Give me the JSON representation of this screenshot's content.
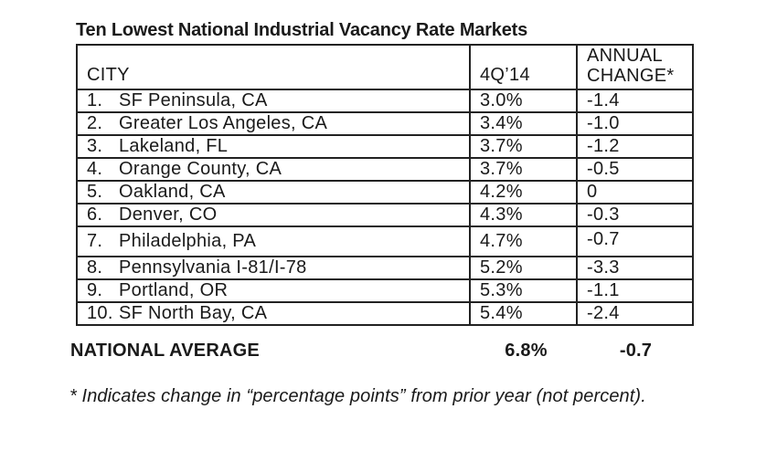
{
  "title": "Ten Lowest National Industrial Vacancy Rate Markets",
  "table": {
    "header": {
      "city": "CITY",
      "q4": "4Q’14",
      "change_line1": "ANNUAL",
      "change_line2": "CHANGE*"
    },
    "rows": [
      {
        "rank": "1.",
        "city": "SF Peninsula, CA",
        "q4": "3.0%",
        "change": "-1.4"
      },
      {
        "rank": "2.",
        "city": "Greater Los Angeles, CA",
        "q4": "3.4%",
        "change": "-1.0"
      },
      {
        "rank": "3.",
        "city": "Lakeland, FL",
        "q4": "3.7%",
        "change": "-1.2"
      },
      {
        "rank": "4.",
        "city": "Orange County, CA",
        "q4": "3.7%",
        "change": "-0.5"
      },
      {
        "rank": "5.",
        "city": "Oakland, CA",
        "q4": "4.2%",
        "change": "0"
      },
      {
        "rank": "6.",
        "city": "Denver, CO",
        "q4": "4.3%",
        "change": "-0.3"
      },
      {
        "rank": "7.",
        "city": "Philadelphia, PA",
        "q4": "4.7%",
        "change": "-0.7",
        "tall": true
      },
      {
        "rank": "8.",
        "city": "Pennsylvania I-81/I-78",
        "q4": "5.2%",
        "change": "-3.3"
      },
      {
        "rank": "9.",
        "city": "Portland, OR",
        "q4": "5.3%",
        "change": "-1.1"
      },
      {
        "rank": "10.",
        "city": "SF North Bay, CA",
        "q4": "5.4%",
        "change": "-2.4"
      }
    ],
    "summary": {
      "label": "NATIONAL AVERAGE",
      "q4": "6.8%",
      "change": "-0.7"
    }
  },
  "footnote": "* Indicates change in “percentage points” from prior year (not percent).",
  "colors": {
    "background": "#ffffff",
    "text": "#1a1a1a",
    "border": "#222222"
  }
}
